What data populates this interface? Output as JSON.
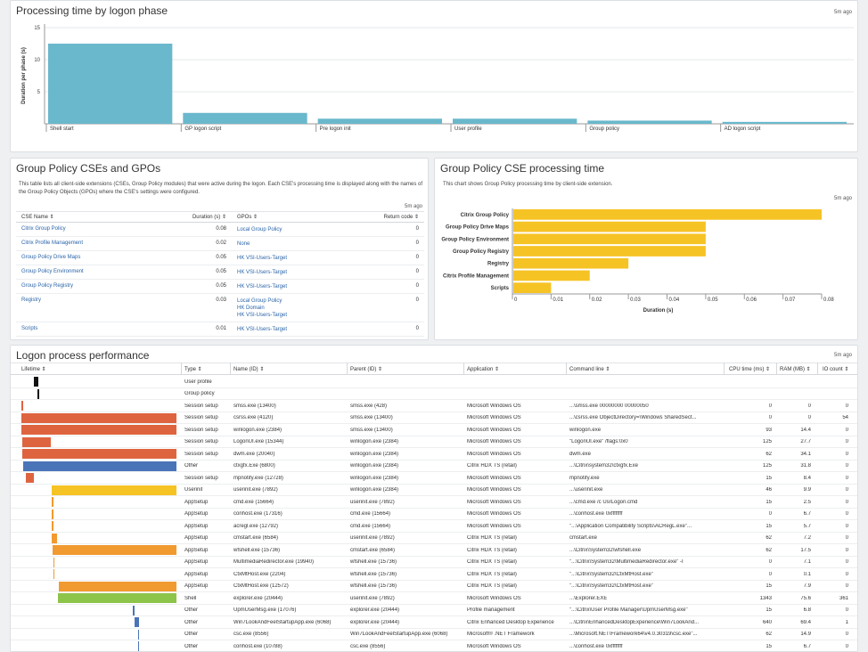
{
  "phase_chart": {
    "title": "Processing time by logon phase",
    "ago": "5m ago",
    "chart_data": {
      "type": "bar",
      "ylabel": "Duration per phase (s)",
      "ylim": [
        0,
        15
      ],
      "yticks": [
        "15",
        "10",
        "5"
      ],
      "categories": [
        "Shell start",
        "GP logon script",
        "Pre logon init",
        "User profile",
        "Group policy",
        "AD logon script"
      ],
      "values": [
        12.5,
        1.7,
        0.8,
        0.8,
        0.5,
        0.3
      ],
      "color": "#6ab8cc"
    }
  },
  "cse_table": {
    "title": "Group Policy CSEs and GPOs",
    "description": "This table lists all client-side extensions (CSEs, Group Policy modules) that were active during the logon. Each CSE's processing time is displayed along with the names of the Group Policy Objects (GPOs) where the CSE's settings were configured.",
    "ago": "5m ago",
    "headers": {
      "name": "CSE Name ⇕",
      "duration": "Duration (s) ⇕",
      "gpos": "GPOs ⇕",
      "return_code": "Return code ⇕"
    },
    "rows": [
      {
        "name": "Citrix Group Policy",
        "duration": "0.08",
        "gpos": [
          "Local Group Policy"
        ],
        "return_code": "0"
      },
      {
        "name": "Citrix Profile Management",
        "duration": "0.02",
        "gpos": [
          "None"
        ],
        "return_code": "0"
      },
      {
        "name": "Group Policy Drive Maps",
        "duration": "0.05",
        "gpos": [
          "HK VSI-Users-Target"
        ],
        "return_code": "0"
      },
      {
        "name": "Group Policy Environment",
        "duration": "0.05",
        "gpos": [
          "HK VSI-Users-Target"
        ],
        "return_code": "0"
      },
      {
        "name": "Group Policy Registry",
        "duration": "0.05",
        "gpos": [
          "HK VSI-Users-Target"
        ],
        "return_code": "0"
      },
      {
        "name": "Registry",
        "duration": "0.03",
        "gpos": [
          "Local Group Policy",
          "HK Domain",
          "HK VSI-Users-Target"
        ],
        "return_code": "0"
      },
      {
        "name": "Scripts",
        "duration": "0.01",
        "gpos": [
          "HK VSI-Users-Target"
        ],
        "return_code": "0"
      }
    ]
  },
  "cse_chart": {
    "title": "Group Policy CSE processing time",
    "description": "This chart shows Group Policy processing time by client-side extension.",
    "ago": "5m ago",
    "chart_data": {
      "type": "bar",
      "orientation": "horizontal",
      "xlabel": "Duration (s)",
      "xlim": [
        0,
        0.08
      ],
      "xticks": [
        "0",
        "0.01",
        "0.02",
        "0.03",
        "0.04",
        "0.05",
        "0.06",
        "0.07",
        "0.08"
      ],
      "categories": [
        "Citrix Group Policy",
        "Group Policy Drive Maps",
        "Group Policy Environment",
        "Group Policy Registry",
        "Registry",
        "Citrix Profile Management",
        "Scripts"
      ],
      "values": [
        0.08,
        0.05,
        0.05,
        0.05,
        0.03,
        0.02,
        0.01
      ],
      "color": "#f6c325"
    }
  },
  "process_table": {
    "title": "Logon process performance",
    "ago": "5m ago",
    "headers": {
      "lifetime": "Lifetime ⇕",
      "type": "Type ⇕",
      "name": "Name (ID) ⇕",
      "parent": "Parent (ID) ⇕",
      "application": "Application ⇕",
      "command": "Command line ⇕",
      "cpu": "CPU time (ms) ⇕",
      "ram": "RAM (MB) ⇕",
      "io": "IO count ⇕"
    },
    "colors": {
      "Session setup": "#de6440",
      "Other": "#4a74b8",
      "Userinit": "#f6c325",
      "AppSetup": "#f19a30",
      "Shell": "#8dc44a",
      "User profile": "#111111",
      "Group policy": "#111111",
      "Other-late": "#4a74b8"
    },
    "rows": [
      {
        "start": 0.083,
        "end": 0.108,
        "color": "#111111",
        "type": "User profile",
        "name": "",
        "parent": "",
        "application": "",
        "command": "",
        "cpu": "",
        "ram": "",
        "io": ""
      },
      {
        "start": 0.106,
        "end": 0.114,
        "color": "#111111",
        "type": "Group policy",
        "name": "",
        "parent": "",
        "application": "",
        "command": "",
        "cpu": "",
        "ram": "",
        "io": ""
      },
      {
        "start": 0.0,
        "end": 0.004,
        "color": "#de6440",
        "type": "Session setup",
        "name": "smss.exe (13400)",
        "parent": "smss.exe (428)",
        "application": "Microsoft Windows OS",
        "command": "...\\smss.exe 00000000 00000050",
        "cpu": "0",
        "ram": "0",
        "io": "0"
      },
      {
        "start": 0.0,
        "end": 1.0,
        "color": "#de6440",
        "type": "Session setup",
        "name": "csrss.exe (4120)",
        "parent": "smss.exe (13400)",
        "application": "Microsoft Windows OS",
        "command": "...\\csrss.exe ObjectDirectory=\\Windows SharedSect...",
        "cpu": "0",
        "ram": "0",
        "io": "54"
      },
      {
        "start": 0.0,
        "end": 1.0,
        "color": "#de6440",
        "type": "Session setup",
        "name": "winlogon.exe (2384)",
        "parent": "smss.exe (13400)",
        "application": "Microsoft Windows OS",
        "command": "winlogon.exe",
        "cpu": "93",
        "ram": "14.4",
        "io": "0"
      },
      {
        "start": 0.008,
        "end": 0.19,
        "color": "#de6440",
        "type": "Session setup",
        "name": "LogonUI.exe (15344)",
        "parent": "winlogon.exe (2384)",
        "application": "Microsoft Windows OS",
        "command": "\"LogonUI.exe\" /flags:0x0",
        "cpu": "125",
        "ram": "27.7",
        "io": "0"
      },
      {
        "start": 0.008,
        "end": 1.0,
        "color": "#de6440",
        "type": "Session setup",
        "name": "dwm.exe (20040)",
        "parent": "winlogon.exe (2384)",
        "application": "Microsoft Windows OS",
        "command": "dwm.exe",
        "cpu": "62",
        "ram": "34.1",
        "io": "0"
      },
      {
        "start": 0.014,
        "end": 1.0,
        "color": "#4a74b8",
        "type": "Other",
        "name": "ctxgfx.Exe (6800)",
        "parent": "winlogon.exe (2384)",
        "application": "Citrix HDX TS (retail)",
        "command": "...\\Citrix\\system32\\ctxgfx.Exe",
        "cpu": "125",
        "ram": "31.8",
        "io": "0"
      },
      {
        "start": 0.03,
        "end": 0.08,
        "color": "#de6440",
        "type": "Session setup",
        "name": "mpnotify.exe (12728)",
        "parent": "winlogon.exe (2384)",
        "application": "Microsoft Windows OS",
        "command": "mpnotify.exe",
        "cpu": "15",
        "ram": "8.4",
        "io": "0"
      },
      {
        "start": 0.195,
        "end": 1.0,
        "color": "#f6c325",
        "type": "Userinit",
        "name": "userinit.exe (7892)",
        "parent": "winlogon.exe (2384)",
        "application": "Microsoft Windows OS",
        "command": "...\\userinit.exe",
        "cpu": "46",
        "ram": "9.9",
        "io": "0"
      },
      {
        "start": 0.198,
        "end": 0.204,
        "color": "#f19a30",
        "type": "AppSetup",
        "name": "cmd.exe (15664)",
        "parent": "userinit.exe (7892)",
        "application": "Microsoft Windows OS",
        "command": "...\\cmd.exe /c UsrLogon.cmd",
        "cpu": "15",
        "ram": "2.5",
        "io": "0"
      },
      {
        "start": 0.198,
        "end": 0.204,
        "color": "#f19a30",
        "type": "AppSetup",
        "name": "conhost.exe (17316)",
        "parent": "cmd.exe (15664)",
        "application": "Microsoft Windows OS",
        "command": "...\\conhost.exe 0xffffffff",
        "cpu": "0",
        "ram": "6.7",
        "io": "0"
      },
      {
        "start": 0.198,
        "end": 0.204,
        "color": "#f19a30",
        "type": "AppSetup",
        "name": "acregl.exe (12792)",
        "parent": "cmd.exe (15664)",
        "application": "Microsoft Windows OS",
        "command": "\"...\\Application Compatibility Scripts\\ACRegL.exe\"...",
        "cpu": "15",
        "ram": "5.7",
        "io": "0"
      },
      {
        "start": 0.198,
        "end": 0.232,
        "color": "#f19a30",
        "type": "AppSetup",
        "name": "cmstart.exe (6584)",
        "parent": "userinit.exe (7892)",
        "application": "Citrix HDX TS (retail)",
        "command": "cmstart.exe",
        "cpu": "62",
        "ram": "7.2",
        "io": "0"
      },
      {
        "start": 0.203,
        "end": 1.0,
        "color": "#f19a30",
        "type": "AppSetup",
        "name": "wfshell.exe (15736)",
        "parent": "cmstart.exe (6584)",
        "application": "Citrix HDX TS (retail)",
        "command": "...\\Citrix\\System32\\wfshell.exe",
        "cpu": "62",
        "ram": "17.5",
        "io": "0"
      },
      {
        "start": 0.205,
        "end": 0.211,
        "color": "#f19a30",
        "type": "AppSetup",
        "name": "MultimediaRedirector.exe (19940)",
        "parent": "wfshell.exe (15736)",
        "application": "Citrix HDX TS (retail)",
        "command": "\"...\\Citrix\\System32\\MultimediaRedirector.exe\" -I",
        "cpu": "0",
        "ram": "7.1",
        "io": "0"
      },
      {
        "start": 0.205,
        "end": 0.211,
        "color": "#f19a30",
        "type": "AppSetup",
        "name": "CtxMtHost.exe (2204)",
        "parent": "wfshell.exe (15736)",
        "application": "Citrix HDX TS (retail)",
        "command": "\"...\\Citrix\\System32\\CtxMtHost.exe\"",
        "cpu": "0",
        "ram": "0.1",
        "io": "0"
      },
      {
        "start": 0.24,
        "end": 1.0,
        "color": "#f19a30",
        "type": "AppSetup",
        "name": "CtxMtHost.exe (12572)",
        "parent": "wfshell.exe (15736)",
        "application": "Citrix HDX TS (retail)",
        "command": "\"...\\Citrix\\System32\\CtxMtHost.exe\"",
        "cpu": "15",
        "ram": "7.9",
        "io": "0"
      },
      {
        "start": 0.234,
        "end": 1.0,
        "color": "#8dc44a",
        "type": "Shell",
        "name": "explorer.exe (20444)",
        "parent": "userinit.exe (7892)",
        "application": "Microsoft Windows OS",
        "command": "...\\Explorer.EXE",
        "cpu": "1343",
        "ram": "75.6",
        "io": "361"
      },
      {
        "start": 0.72,
        "end": 0.725,
        "color": "#4a74b8",
        "type": "Other",
        "name": "UpmUserMsg.exe (17076)",
        "parent": "explorer.exe (20444)",
        "application": "Profile management",
        "command": "\"...\\Citrix\\User Profile Manager\\UpmUserMsg.exe\"",
        "cpu": "15",
        "ram": "6.8",
        "io": "0"
      },
      {
        "start": 0.73,
        "end": 0.76,
        "color": "#4a74b8",
        "type": "Other",
        "name": "Win7LookAndFeelStartupApp.exe (6068)",
        "parent": "explorer.exe (20444)",
        "application": "Citrix Enhanced Desktop Experience",
        "command": "...\\Citrix\\EnhancedDesktopExperience\\Win7LookAnd...",
        "cpu": "640",
        "ram": "69.4",
        "io": "1"
      },
      {
        "start": 0.75,
        "end": 0.755,
        "color": "#4a74b8",
        "type": "Other",
        "name": "csc.exe (8556)",
        "parent": "Win7LookAndFeelStartupApp.exe (6068)",
        "application": "Microsoft® .NET Framework",
        "command": "...\\Microsoft.NET\\Framework64\\v4.0.30319\\csc.exe\"...",
        "cpu": "62",
        "ram": "14.9",
        "io": "0"
      },
      {
        "start": 0.75,
        "end": 0.755,
        "color": "#4a74b8",
        "type": "Other",
        "name": "conhost.exe (10788)",
        "parent": "csc.exe (8556)",
        "application": "Microsoft Windows OS",
        "command": "...\\conhost.exe 0xffffffff",
        "cpu": "15",
        "ram": "6.7",
        "io": "0"
      }
    ]
  }
}
